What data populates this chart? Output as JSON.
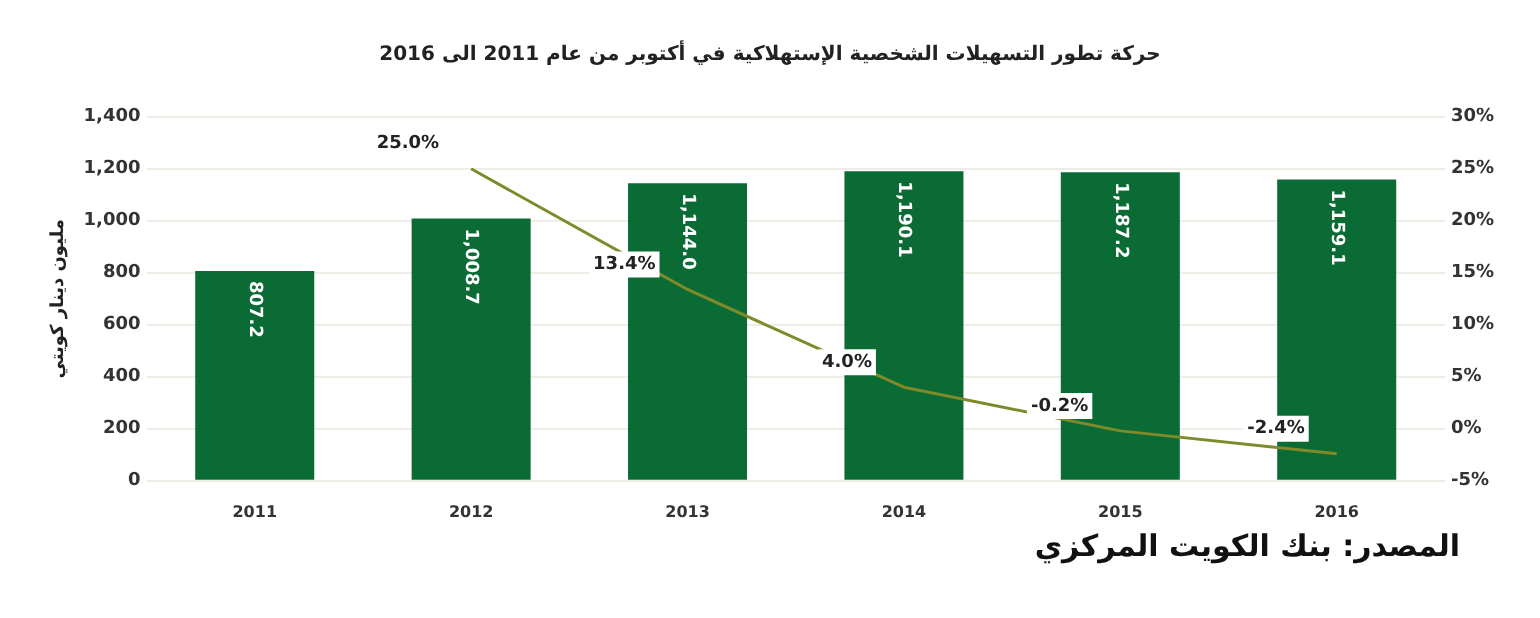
{
  "chart_data": {
    "type": "bar",
    "title": "حركة تطور التسهيلات الشخصية الإستهلاكية  في أكتوبر من عام 2011 الى 2016",
    "ylabel": "مليون دينار كويتي",
    "annotations": [
      "المصدر: بنك الكويت المركزي"
    ],
    "categories": [
      "2011",
      "2012",
      "2013",
      "2014",
      "2015",
      "2016"
    ],
    "series": [
      {
        "color": "#0b6b35",
        "values": [
          807.2,
          1008.7,
          1144.0,
          1190.1,
          1187.2,
          1159.1
        ],
        "value_labels": [
          "807.2",
          "1,008.7",
          "1,144.0",
          "1,190.1",
          "1,187.2",
          "1,159.1"
        ]
      },
      {
        "type": "line",
        "axis": "y2",
        "color": "#7f8a2a",
        "values": [
          null,
          25.0,
          13.4,
          4.0,
          -0.2,
          -2.4
        ],
        "value_labels": [
          null,
          "25.0%",
          "13.4%",
          "4.0%",
          "-0.2%",
          "-2.4%"
        ]
      }
    ],
    "ylim": [
      0,
      1400
    ],
    "yticks": [
      0,
      200,
      400,
      600,
      800,
      {
        "value": 1000,
        "label": "1,000"
      },
      {
        "value": 1200,
        "label": "1,200"
      },
      {
        "value": 1400,
        "label": "1,400"
      }
    ],
    "y2lim": [
      -5,
      30
    ],
    "y2ticks": [
      {
        "value": -5,
        "label": "-5%"
      },
      {
        "value": 0,
        "label": "0%"
      },
      {
        "value": 5,
        "label": "5%"
      },
      {
        "value": 10,
        "label": "10%"
      },
      {
        "value": 15,
        "label": "15%"
      },
      {
        "value": 20,
        "label": "20%"
      },
      {
        "value": 25,
        "label": "25%"
      },
      {
        "value": 30,
        "label": "30%"
      }
    ],
    "grid": "y",
    "legend": false,
    "marker": "none",
    "line_style": "solid"
  }
}
